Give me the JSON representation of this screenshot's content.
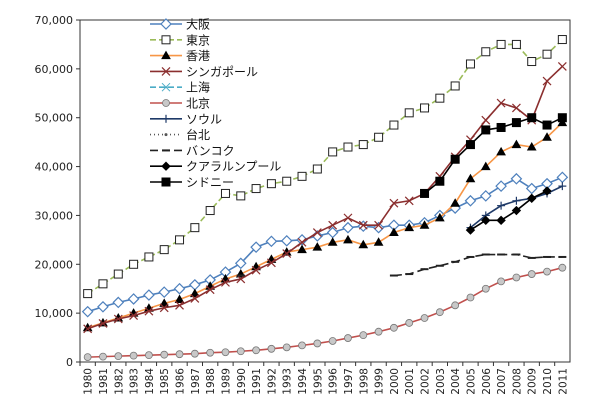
{
  "chart_data": {
    "type": "line",
    "title": "",
    "xlabel": "",
    "ylabel": "",
    "ylim": [
      0,
      70000
    ],
    "yticks": [
      0,
      10000,
      20000,
      30000,
      40000,
      50000,
      60000,
      70000
    ],
    "ytick_labels": [
      "0",
      "10,000",
      "20,000",
      "30,000",
      "40,000",
      "50,000",
      "60,000",
      "70,000"
    ],
    "grid": false,
    "legend_position": "top-left",
    "x": [
      "1980",
      "1981",
      "1982",
      "1983",
      "1984",
      "1985",
      "1986",
      "1987",
      "1988",
      "1989",
      "1990",
      "1991",
      "1992",
      "1993",
      "1994",
      "1995",
      "1996",
      "1997",
      "1998",
      "1999",
      "2000",
      "2001",
      "2002",
      "2003",
      "2004",
      "2005",
      "2006",
      "2007",
      "2008",
      "2009",
      "2010",
      "2011"
    ],
    "series": [
      {
        "name": "大阪",
        "color": "#4f81bd",
        "dash": "",
        "marker": "diamond_open",
        "values": [
          10300,
          11300,
          12200,
          12900,
          13700,
          14300,
          15000,
          15800,
          16800,
          18400,
          20200,
          23500,
          24700,
          24800,
          25000,
          25800,
          26500,
          27500,
          27800,
          27500,
          28000,
          28000,
          28500,
          30000,
          31500,
          33000,
          34000,
          36000,
          37500,
          35500,
          36500,
          37800
        ]
      },
      {
        "name": "東京",
        "color": "#9bbb59",
        "dash": "6,3",
        "marker": "square_open",
        "values": [
          14000,
          16000,
          18000,
          20000,
          21500,
          23000,
          25000,
          27500,
          31000,
          34500,
          34000,
          35500,
          36500,
          37000,
          38000,
          39500,
          43000,
          44000,
          44500,
          46000,
          48500,
          51000,
          52000,
          54000,
          56500,
          61000,
          63500,
          65000,
          65000,
          61500,
          63000,
          66000
        ]
      },
      {
        "name": "香港",
        "color": "#f79646",
        "dash": "",
        "marker": "triangle",
        "values": [
          7000,
          8000,
          9000,
          10000,
          11000,
          12000,
          12800,
          14000,
          15500,
          17000,
          18000,
          19500,
          21000,
          22500,
          23000,
          23500,
          24500,
          25000,
          24000,
          24500,
          26500,
          27500,
          28000,
          29500,
          32500,
          37500,
          40000,
          43000,
          44500,
          44000,
          46000,
          49000
        ]
      },
      {
        "name": "シンガポール",
        "color": "#8b2f2f",
        "dash": "",
        "marker": "x",
        "values": [
          6800,
          7900,
          8800,
          9500,
          10400,
          11100,
          11600,
          13000,
          14800,
          16300,
          17000,
          18800,
          20300,
          22200,
          24500,
          26500,
          28000,
          29500,
          28000,
          28000,
          32500,
          33000,
          34500,
          38000,
          42000,
          45500,
          49500,
          53000,
          52000,
          49500,
          57500,
          60500
        ]
      },
      {
        "name": "上海",
        "color": "#4bacc6",
        "dash": "6,3",
        "marker": "star",
        "values": [
          null,
          null,
          null,
          null,
          null,
          null,
          null,
          null,
          null,
          null,
          null,
          null,
          null,
          null,
          null,
          null,
          null,
          null,
          null,
          null,
          null,
          null,
          null,
          null,
          null,
          null,
          null,
          null,
          null,
          null,
          null,
          null
        ]
      },
      {
        "name": "北京",
        "color": "#c0504d",
        "dash": "",
        "marker": "circle",
        "values": [
          1000,
          1100,
          1200,
          1300,
          1400,
          1500,
          1600,
          1700,
          1900,
          2000,
          2200,
          2400,
          2700,
          3000,
          3400,
          3800,
          4300,
          4900,
          5500,
          6200,
          7000,
          8000,
          9000,
          10200,
          11600,
          13200,
          15000,
          16500,
          17300,
          18000,
          18500,
          19300
        ]
      },
      {
        "name": "ソウル",
        "color": "#1f3a68",
        "dash": "",
        "marker": "plus",
        "values": [
          null,
          null,
          null,
          null,
          null,
          null,
          null,
          null,
          null,
          null,
          null,
          null,
          null,
          null,
          null,
          null,
          null,
          null,
          null,
          null,
          null,
          null,
          null,
          null,
          null,
          27500,
          30000,
          32000,
          33000,
          33500,
          34500,
          36000
        ]
      },
      {
        "name": "台北",
        "color": "#555555",
        "dash": "1,3",
        "marker": "dot",
        "values": [
          null,
          null,
          null,
          null,
          null,
          null,
          null,
          null,
          null,
          null,
          null,
          null,
          null,
          null,
          null,
          null,
          null,
          null,
          null,
          null,
          null,
          null,
          null,
          null,
          null,
          null,
          null,
          null,
          null,
          null,
          null,
          null
        ]
      },
      {
        "name": "バンコク",
        "color": "#222222",
        "dash": "8,4",
        "marker": "dash",
        "values": [
          null,
          null,
          null,
          null,
          null,
          null,
          null,
          null,
          null,
          null,
          17700,
          null,
          null,
          null,
          null,
          null,
          null,
          null,
          null,
          null,
          17700,
          18000,
          19000,
          19700,
          20500,
          21500,
          22000,
          22000,
          22000,
          21300,
          21500,
          21500
        ]
      },
      {
        "name": "クアラルンプール",
        "color": "#000000",
        "dash": "",
        "marker": "diamond",
        "values": [
          null,
          null,
          null,
          null,
          null,
          null,
          null,
          null,
          null,
          null,
          null,
          null,
          null,
          null,
          null,
          null,
          null,
          null,
          null,
          null,
          null,
          null,
          null,
          null,
          null,
          27000,
          29000,
          29000,
          31000,
          33500,
          35000,
          null
        ]
      },
      {
        "name": "シドニー",
        "color": "#000000",
        "dash": "",
        "marker": "square",
        "values": [
          null,
          null,
          null,
          null,
          null,
          null,
          null,
          null,
          null,
          null,
          null,
          null,
          null,
          null,
          null,
          null,
          null,
          null,
          null,
          null,
          null,
          null,
          34500,
          37000,
          41500,
          44500,
          47500,
          48000,
          49000,
          50000,
          48500,
          50000
        ]
      }
    ]
  }
}
